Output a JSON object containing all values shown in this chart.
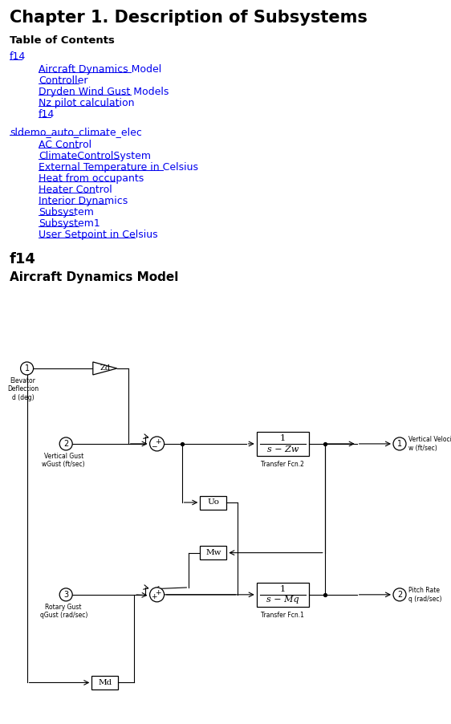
{
  "title": "Chapter 1. Description of Subsystems",
  "toc_header": "Table of Contents",
  "toc_section1_name": "f14",
  "toc_section1_items": [
    "Aircraft Dynamics Model",
    "Controller",
    "Dryden Wind Gust Models",
    "Nz pilot calculation",
    "f14"
  ],
  "toc_section2_name": "sldemo_auto_climate_elec",
  "toc_section2_items": [
    "AC Control",
    "ClimateControlSystem",
    "External Temperature in Celsius",
    "Heat from occupants",
    "Heater Control",
    "Interior Dynamics",
    "Subsystem",
    "Subsystem1",
    "User Setpoint in Celsius"
  ],
  "section_f14": "f14",
  "subsection_adm": "Aircraft Dynamics Model",
  "link_color": "#0000EE",
  "black": "#000000",
  "white": "#FFFFFF",
  "bg": "#FFFFFF"
}
